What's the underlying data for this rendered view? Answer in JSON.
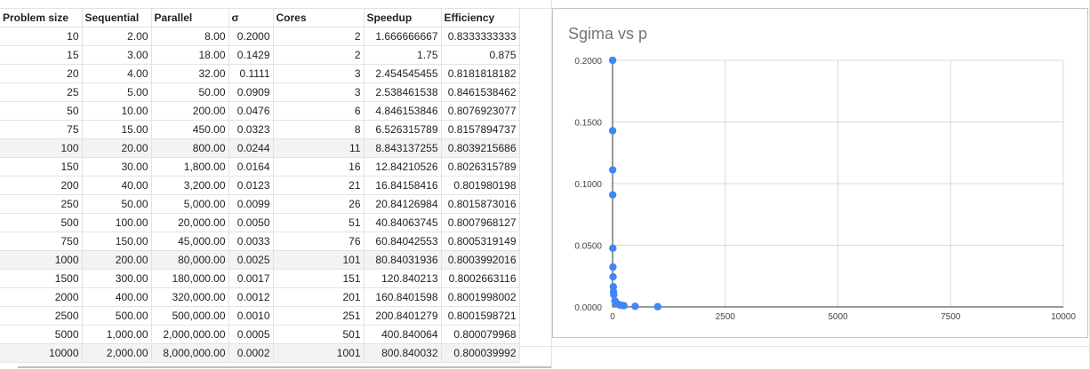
{
  "table": {
    "headers": [
      "Problem size",
      "Sequential",
      "Parallel",
      "σ",
      "Cores",
      "Speedup",
      "Efficiency"
    ],
    "rows": [
      [
        "10",
        "2.00",
        "8.00",
        "0.2000",
        "2",
        "1.666666667",
        "0.8333333333"
      ],
      [
        "15",
        "3.00",
        "18.00",
        "0.1429",
        "2",
        "1.75",
        "0.875"
      ],
      [
        "20",
        "4.00",
        "32.00",
        "0.1111",
        "3",
        "2.454545455",
        "0.8181818182"
      ],
      [
        "25",
        "5.00",
        "50.00",
        "0.0909",
        "3",
        "2.538461538",
        "0.8461538462"
      ],
      [
        "50",
        "10.00",
        "200.00",
        "0.0476",
        "6",
        "4.846153846",
        "0.8076923077"
      ],
      [
        "75",
        "15.00",
        "450.00",
        "0.0323",
        "8",
        "6.526315789",
        "0.8157894737"
      ],
      [
        "100",
        "20.00",
        "800.00",
        "0.0244",
        "11",
        "8.843137255",
        "0.8039215686"
      ],
      [
        "150",
        "30.00",
        "1,800.00",
        "0.0164",
        "16",
        "12.84210526",
        "0.8026315789"
      ],
      [
        "200",
        "40.00",
        "3,200.00",
        "0.0123",
        "21",
        "16.84158416",
        "0.801980198"
      ],
      [
        "250",
        "50.00",
        "5,000.00",
        "0.0099",
        "26",
        "20.84126984",
        "0.8015873016"
      ],
      [
        "500",
        "100.00",
        "20,000.00",
        "0.0050",
        "51",
        "40.84063745",
        "0.8007968127"
      ],
      [
        "750",
        "150.00",
        "45,000.00",
        "0.0033",
        "76",
        "60.84042553",
        "0.8005319149"
      ],
      [
        "1000",
        "200.00",
        "80,000.00",
        "0.0025",
        "101",
        "80.84031936",
        "0.8003992016"
      ],
      [
        "1500",
        "300.00",
        "180,000.00",
        "0.0017",
        "151",
        "120.840213",
        "0.8002663116"
      ],
      [
        "2000",
        "400.00",
        "320,000.00",
        "0.0012",
        "201",
        "160.8401598",
        "0.8001998002"
      ],
      [
        "2500",
        "500.00",
        "500,000.00",
        "0.0010",
        "251",
        "200.8401279",
        "0.8001598721"
      ],
      [
        "5000",
        "1,000.00",
        "2,000,000.00",
        "0.0005",
        "501",
        "400.840064",
        "0.800079968"
      ],
      [
        "10000",
        "2,000.00",
        "8,000,000.00",
        "0.0002",
        "1001",
        "800.840032",
        "0.800039992"
      ]
    ],
    "shaded_rows": [
      6,
      12,
      17
    ]
  },
  "chart_data": {
    "type": "scatter",
    "title": "Sgima vs p",
    "xlabel": "",
    "ylabel": "",
    "x": [
      2,
      2,
      3,
      3,
      6,
      8,
      11,
      16,
      21,
      26,
      51,
      76,
      101,
      151,
      201,
      251,
      501,
      1001
    ],
    "y": [
      0.2,
      0.1429,
      0.1111,
      0.0909,
      0.0476,
      0.0323,
      0.0244,
      0.0164,
      0.0123,
      0.0099,
      0.005,
      0.0033,
      0.0025,
      0.0017,
      0.0012,
      0.001,
      0.0005,
      0.0002
    ],
    "xlim": [
      0,
      10000
    ],
    "ylim": [
      0,
      0.2
    ],
    "x_ticks": [
      "0",
      "2500",
      "5000",
      "7500",
      "10000"
    ],
    "y_ticks": [
      "0.0000",
      "0.0500",
      "0.1000",
      "0.1500",
      "0.2000"
    ],
    "grid": true,
    "legend": "none",
    "point_color": "#4285f4"
  }
}
